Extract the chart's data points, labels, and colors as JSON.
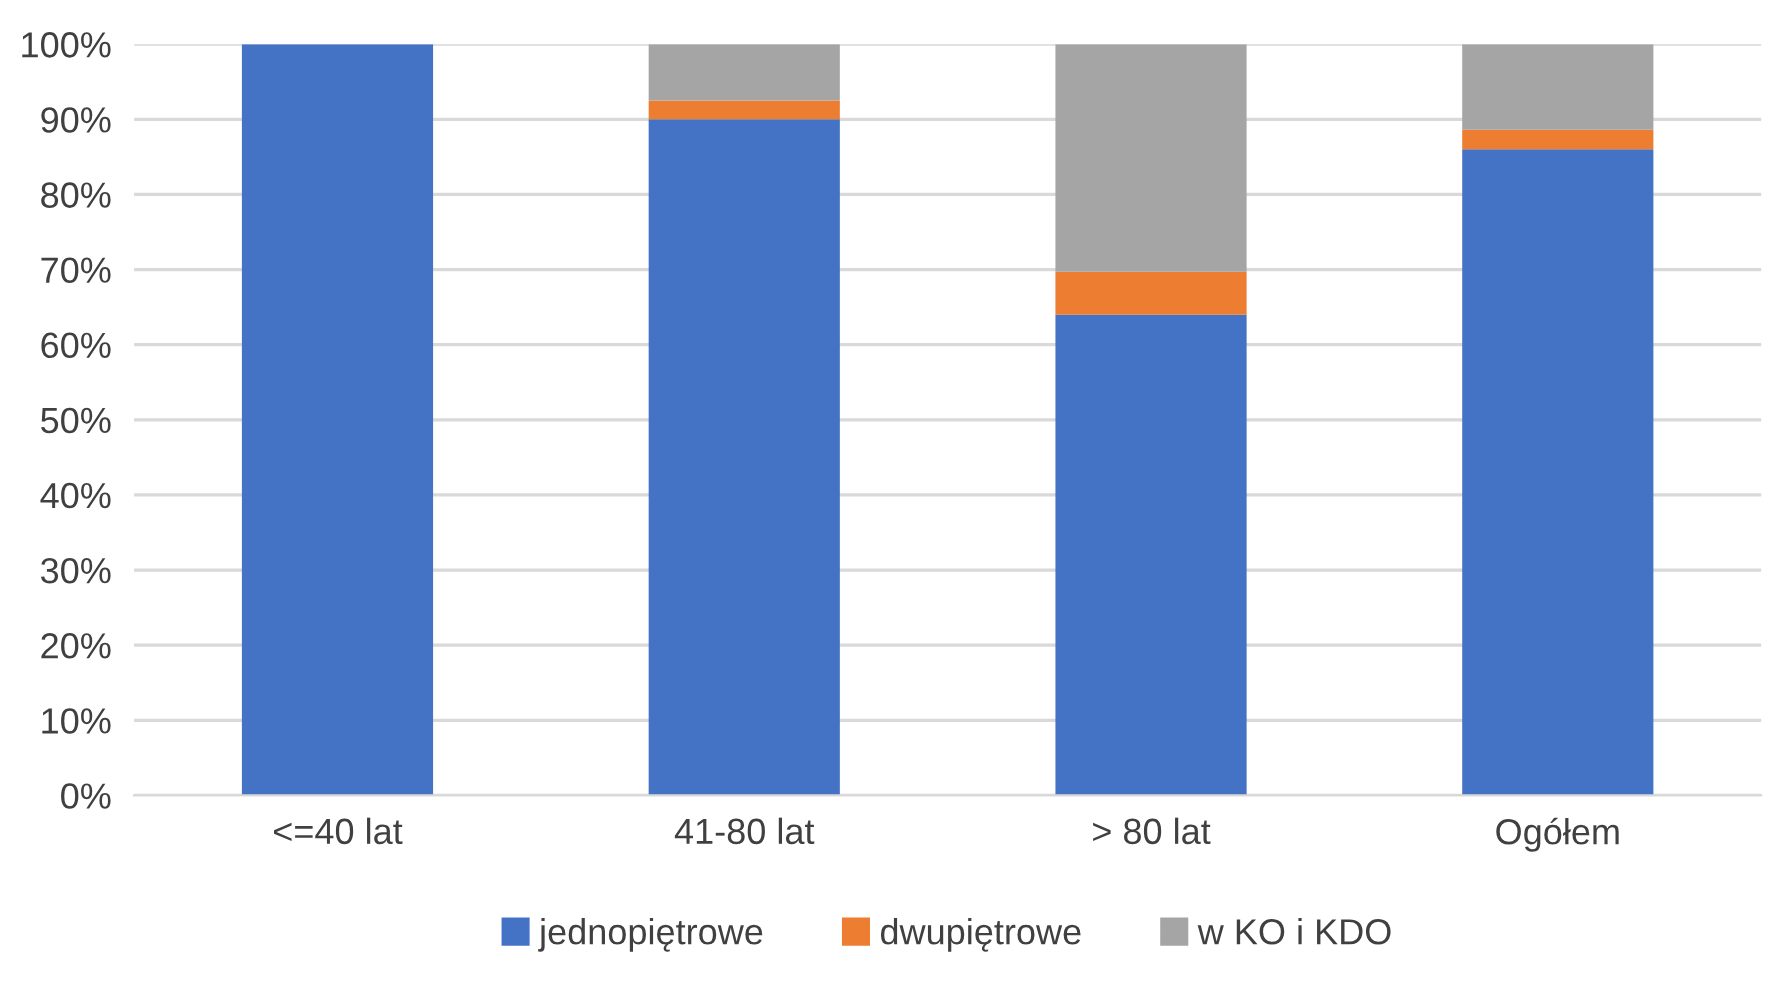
{
  "chart_data": {
    "type": "bar",
    "stacked": true,
    "categories": [
      "<=40 lat",
      "41-80 lat",
      "> 80 lat",
      "Ogółem"
    ],
    "series": [
      {
        "name": "jednopiętrowe",
        "color": "#4472c4",
        "values": [
          100,
          90,
          64,
          86
        ]
      },
      {
        "name": "dwupiętrowe",
        "color": "#ed7d31",
        "values": [
          null,
          2.5,
          5.7,
          2.6
        ]
      },
      {
        "name": "w KO i KDO",
        "color": "#a5a5a5",
        "values": [
          null,
          7.5,
          30.3,
          11.4
        ]
      }
    ],
    "ylim": [
      0,
      100
    ],
    "yticks": [
      {
        "value": 0,
        "label": "0%"
      },
      {
        "value": 10,
        "label": "10%"
      },
      {
        "value": 20,
        "label": "20%"
      },
      {
        "value": 30,
        "label": "30%"
      },
      {
        "value": 40,
        "label": "40%"
      },
      {
        "value": 50,
        "label": "50%"
      },
      {
        "value": 60,
        "label": "60%"
      },
      {
        "value": 70,
        "label": "70%"
      },
      {
        "value": 80,
        "label": "80%"
      },
      {
        "value": 90,
        "label": "90%"
      },
      {
        "value": 100,
        "label": "100%"
      }
    ],
    "grid": "y",
    "legend": "bottom"
  }
}
